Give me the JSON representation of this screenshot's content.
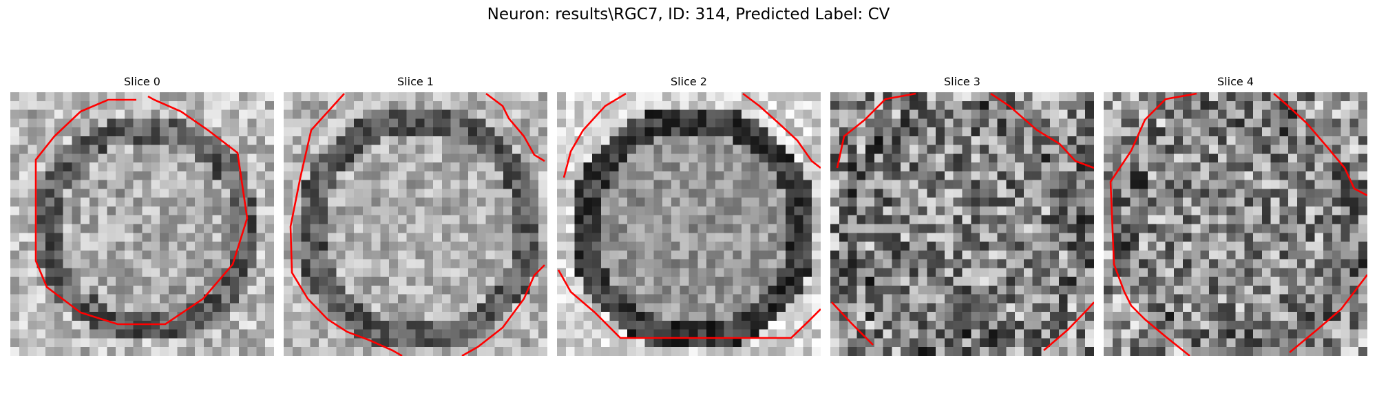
{
  "figure": {
    "title": "Neuron: results\\RGC7, ID: 314, Predicted Label: CV"
  },
  "contour_color": "#ff0000",
  "colormap": "gray",
  "slices": [
    {
      "title": "Slice 0"
    },
    {
      "title": "Slice 1"
    },
    {
      "title": "Slice 2"
    },
    {
      "title": "Slice 3"
    },
    {
      "title": "Slice 4"
    }
  ]
}
